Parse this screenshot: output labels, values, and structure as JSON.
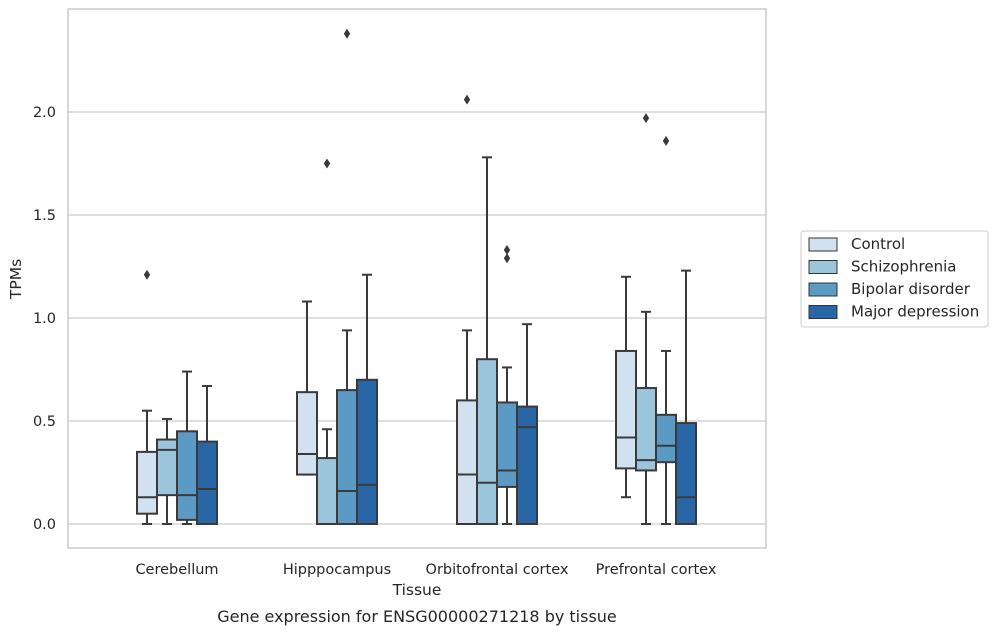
{
  "chart_data": {
    "type": "box",
    "xlabel": "Tissue",
    "ylabel": "TPMs",
    "caption": "Gene expression for ENSG00000271218 by tissue",
    "ylim": [
      -0.12,
      2.5
    ],
    "yticks": [
      "0.0",
      "0.5",
      "1.0",
      "1.5",
      "2.0"
    ],
    "grid": true,
    "legend_position": "right",
    "categories": [
      "Cerebellum",
      "Hipppocampus",
      "Orbitofrontal cortex",
      "Prefrontal cortex"
    ],
    "series": [
      {
        "name": "Control",
        "color": "#d2e1f0",
        "boxes": [
          {
            "whislo": 0.0,
            "q1": 0.05,
            "med": 0.13,
            "q3": 0.35,
            "whishi": 0.55,
            "fliers": [
              1.21
            ]
          },
          {
            "whislo": 0.24,
            "q1": 0.24,
            "med": 0.34,
            "q3": 0.64,
            "whishi": 1.08,
            "fliers": []
          },
          {
            "whislo": 0.0,
            "q1": 0.0,
            "med": 0.24,
            "q3": 0.6,
            "whishi": 0.94,
            "fliers": [
              2.06
            ]
          },
          {
            "whislo": 0.13,
            "q1": 0.27,
            "med": 0.42,
            "q3": 0.84,
            "whishi": 1.2,
            "fliers": []
          }
        ]
      },
      {
        "name": "Schizophrenia",
        "color": "#9ac5db",
        "boxes": [
          {
            "whislo": 0.0,
            "q1": 0.14,
            "med": 0.36,
            "q3": 0.41,
            "whishi": 0.51,
            "fliers": []
          },
          {
            "whislo": 0.0,
            "q1": 0.0,
            "med": 0.0,
            "q3": 0.32,
            "whishi": 0.46,
            "fliers": [
              1.75
            ]
          },
          {
            "whislo": 0.0,
            "q1": 0.0,
            "med": 0.2,
            "q3": 0.8,
            "whishi": 1.78,
            "fliers": []
          },
          {
            "whislo": 0.0,
            "q1": 0.26,
            "med": 0.31,
            "q3": 0.66,
            "whishi": 1.03,
            "fliers": [
              1.97
            ]
          }
        ]
      },
      {
        "name": "Bipolar disorder",
        "color": "#5b9ac5",
        "boxes": [
          {
            "whislo": 0.0,
            "q1": 0.02,
            "med": 0.14,
            "q3": 0.45,
            "whishi": 0.74,
            "fliers": []
          },
          {
            "whislo": 0.0,
            "q1": 0.0,
            "med": 0.16,
            "q3": 0.65,
            "whishi": 0.94,
            "fliers": [
              2.38
            ]
          },
          {
            "whislo": 0.0,
            "q1": 0.18,
            "med": 0.26,
            "q3": 0.59,
            "whishi": 0.76,
            "fliers": [
              1.29,
              1.33
            ]
          },
          {
            "whislo": 0.0,
            "q1": 0.3,
            "med": 0.38,
            "q3": 0.53,
            "whishi": 0.84,
            "fliers": [
              1.86
            ]
          }
        ]
      },
      {
        "name": "Major depression",
        "color": "#2966a6",
        "boxes": [
          {
            "whislo": 0.0,
            "q1": 0.0,
            "med": 0.17,
            "q3": 0.4,
            "whishi": 0.67,
            "fliers": []
          },
          {
            "whislo": 0.0,
            "q1": 0.0,
            "med": 0.19,
            "q3": 0.7,
            "whishi": 1.21,
            "fliers": []
          },
          {
            "whislo": 0.0,
            "q1": 0.0,
            "med": 0.47,
            "q3": 0.57,
            "whishi": 0.97,
            "fliers": []
          },
          {
            "whislo": 0.0,
            "q1": 0.0,
            "med": 0.13,
            "q3": 0.49,
            "whishi": 1.23,
            "fliers": []
          }
        ]
      }
    ]
  }
}
